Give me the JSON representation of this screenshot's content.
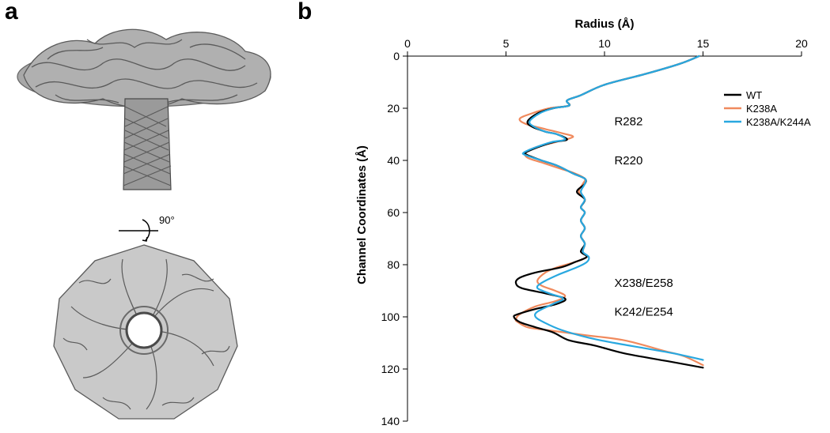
{
  "panels": {
    "a": "a",
    "b": "b"
  },
  "rotation_label": "90°",
  "colors": {
    "structure_stroke": "#555555",
    "structure_fill": "#9a9a9a",
    "axis": "#000000"
  },
  "chart_data": {
    "type": "line",
    "title": "",
    "xlabel": "Radius (Å)",
    "ylabel": "Channel Coordinates (Å)",
    "x_axis_position": "top",
    "y_inverted": true,
    "xlim": [
      0,
      20
    ],
    "ylim": [
      0,
      140
    ],
    "xticks": [
      0,
      5,
      10,
      15,
      20
    ],
    "yticks": [
      0,
      20,
      40,
      60,
      80,
      100,
      120,
      140
    ],
    "grid": false,
    "legend_position": "top-right",
    "series": [
      {
        "name": "WT",
        "color": "#000000",
        "points": [
          [
            14.8,
            0
          ],
          [
            13.8,
            3
          ],
          [
            12.0,
            7
          ],
          [
            10.0,
            11
          ],
          [
            8.8,
            15
          ],
          [
            8.1,
            17
          ],
          [
            8.2,
            19
          ],
          [
            7.4,
            20
          ],
          [
            6.6,
            22
          ],
          [
            6.1,
            25
          ],
          [
            6.3,
            27
          ],
          [
            7.0,
            29
          ],
          [
            7.6,
            30
          ],
          [
            8.1,
            32
          ],
          [
            7.4,
            33
          ],
          [
            6.6,
            35
          ],
          [
            6.0,
            37
          ],
          [
            6.1,
            38
          ],
          [
            6.8,
            40
          ],
          [
            7.6,
            42
          ],
          [
            8.4,
            45
          ],
          [
            9.0,
            47
          ],
          [
            9.0,
            49
          ],
          [
            8.6,
            52
          ],
          [
            9.0,
            55
          ],
          [
            8.8,
            58
          ],
          [
            9.0,
            60
          ],
          [
            8.8,
            63
          ],
          [
            9.0,
            66
          ],
          [
            8.8,
            69
          ],
          [
            9.0,
            72
          ],
          [
            8.8,
            75
          ],
          [
            9.1,
            77
          ],
          [
            8.5,
            79
          ],
          [
            7.8,
            81
          ],
          [
            6.5,
            83
          ],
          [
            5.7,
            85
          ],
          [
            5.5,
            87
          ],
          [
            5.8,
            89
          ],
          [
            7.0,
            91
          ],
          [
            8.0,
            93
          ],
          [
            7.6,
            95
          ],
          [
            6.5,
            97
          ],
          [
            5.6,
            99
          ],
          [
            5.4,
            100
          ],
          [
            5.7,
            102
          ],
          [
            6.5,
            104
          ],
          [
            7.4,
            106
          ],
          [
            8.2,
            109
          ],
          [
            9.5,
            111
          ],
          [
            11.0,
            114
          ],
          [
            13.2,
            117
          ],
          [
            15.0,
            119.5
          ]
        ]
      },
      {
        "name": "K238A",
        "color": "#f08a5d",
        "points": [
          [
            14.8,
            0
          ],
          [
            13.8,
            3
          ],
          [
            12.0,
            7
          ],
          [
            10.0,
            11
          ],
          [
            8.8,
            15
          ],
          [
            8.1,
            17
          ],
          [
            8.2,
            19
          ],
          [
            7.2,
            20
          ],
          [
            6.3,
            22
          ],
          [
            5.7,
            24
          ],
          [
            6.0,
            26
          ],
          [
            7.0,
            28
          ],
          [
            7.8,
            29.5
          ],
          [
            8.4,
            31
          ],
          [
            7.5,
            33
          ],
          [
            6.5,
            35
          ],
          [
            6.0,
            37
          ],
          [
            6.1,
            39
          ],
          [
            6.9,
            41
          ],
          [
            7.7,
            43
          ],
          [
            8.5,
            45
          ],
          [
            9.0,
            47
          ],
          [
            8.9,
            49
          ],
          [
            8.7,
            52
          ],
          [
            9.0,
            55
          ],
          [
            8.8,
            58
          ],
          [
            9.0,
            60
          ],
          [
            8.8,
            63
          ],
          [
            9.0,
            66
          ],
          [
            8.8,
            69
          ],
          [
            9.0,
            72
          ],
          [
            8.9,
            75
          ],
          [
            9.1,
            77
          ],
          [
            8.5,
            79
          ],
          [
            7.6,
            81
          ],
          [
            7.0,
            83
          ],
          [
            6.6,
            86
          ],
          [
            6.8,
            88
          ],
          [
            7.5,
            90
          ],
          [
            8.0,
            92
          ],
          [
            7.5,
            94
          ],
          [
            6.5,
            96
          ],
          [
            5.7,
            99
          ],
          [
            5.5,
            101
          ],
          [
            5.6,
            102
          ],
          [
            6.1,
            104
          ],
          [
            7.0,
            105
          ],
          [
            9.0,
            107
          ],
          [
            11.0,
            109
          ],
          [
            13.0,
            113
          ],
          [
            14.0,
            115
          ],
          [
            15.0,
            118.5
          ]
        ]
      },
      {
        "name": "K238A/K244A",
        "color": "#29a8e0",
        "points": [
          [
            14.8,
            0
          ],
          [
            13.8,
            3
          ],
          [
            12.0,
            7
          ],
          [
            10.0,
            11
          ],
          [
            8.8,
            15
          ],
          [
            8.1,
            17
          ],
          [
            8.2,
            19
          ],
          [
            7.4,
            20
          ],
          [
            6.7,
            22
          ],
          [
            6.2,
            25
          ],
          [
            6.4,
            27
          ],
          [
            7.0,
            29
          ],
          [
            7.6,
            30
          ],
          [
            8.0,
            32
          ],
          [
            7.3,
            33
          ],
          [
            6.5,
            35
          ],
          [
            5.9,
            37
          ],
          [
            6.0,
            38
          ],
          [
            6.8,
            40
          ],
          [
            7.6,
            42
          ],
          [
            8.4,
            45
          ],
          [
            9.0,
            47
          ],
          [
            9.0,
            49
          ],
          [
            8.8,
            52
          ],
          [
            9.0,
            55
          ],
          [
            8.8,
            58
          ],
          [
            9.0,
            60
          ],
          [
            8.8,
            63
          ],
          [
            9.0,
            66
          ],
          [
            8.8,
            69
          ],
          [
            9.0,
            72
          ],
          [
            8.9,
            75
          ],
          [
            9.2,
            77
          ],
          [
            9.1,
            79
          ],
          [
            8.6,
            81
          ],
          [
            7.6,
            84
          ],
          [
            6.8,
            87
          ],
          [
            6.6,
            89
          ],
          [
            7.2,
            91
          ],
          [
            7.9,
            93
          ],
          [
            7.4,
            95
          ],
          [
            6.6,
            98
          ],
          [
            6.5,
            100
          ],
          [
            6.9,
            102
          ],
          [
            7.8,
            105
          ],
          [
            9.2,
            108
          ],
          [
            10.5,
            110
          ],
          [
            12.0,
            112
          ],
          [
            13.5,
            114
          ],
          [
            15.0,
            116.5
          ]
        ]
      }
    ],
    "annotations": [
      {
        "text": "R282",
        "x": 10.5,
        "y": 25
      },
      {
        "text": "R220",
        "x": 10.5,
        "y": 40
      },
      {
        "text": "X238/E258",
        "x": 10.5,
        "y": 87
      },
      {
        "text": "K242/E254",
        "x": 10.5,
        "y": 98
      }
    ]
  }
}
